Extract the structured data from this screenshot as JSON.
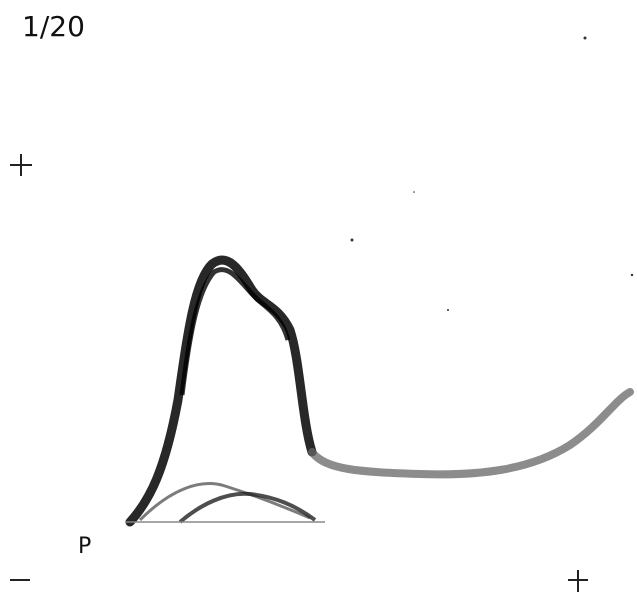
{
  "header": {
    "label": "1/20"
  },
  "footer": {
    "marker": "P"
  }
}
